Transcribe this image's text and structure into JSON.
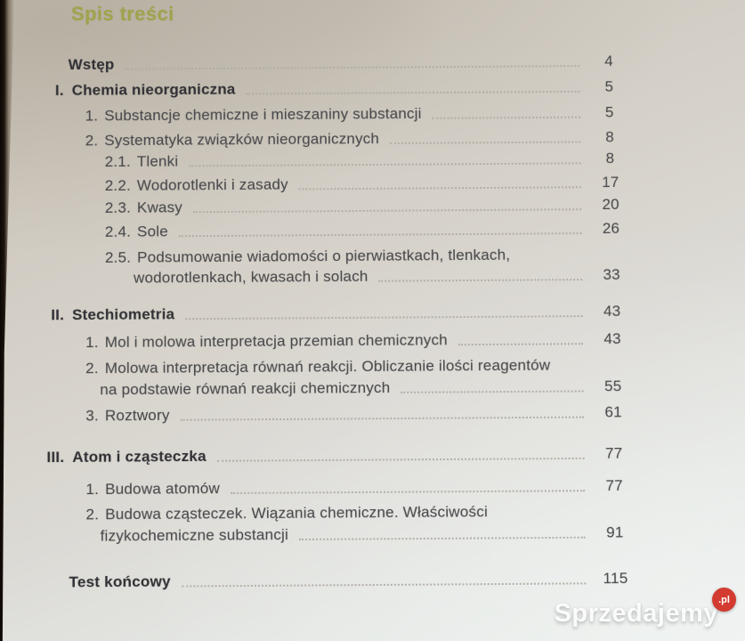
{
  "page_title": "Spis treści",
  "toc": {
    "entries": [
      {
        "num": "",
        "label": "Wstęp",
        "page": "4",
        "level": "l0",
        "bold": true
      },
      {
        "num": "I.",
        "label": "Chemia nieorganiczna",
        "page": "5",
        "level": "sec",
        "bold": true
      },
      {
        "num": "1.",
        "label": "Substancje chemiczne i mieszaniny substancji",
        "page": "5",
        "level": "l1"
      },
      {
        "num": "2.",
        "label": "Systematyka związków nieorganicznych",
        "page": "8",
        "level": "l1"
      },
      {
        "num": "2.1.",
        "label": "Tlenki",
        "page": "8",
        "level": "l2"
      },
      {
        "num": "2.2.",
        "label": "Wodorotlenki i zasady",
        "page": "17",
        "level": "l2"
      },
      {
        "num": "2.3.",
        "label": "Kwasy",
        "page": "20",
        "level": "l2"
      },
      {
        "num": "2.4.",
        "label": "Sole",
        "page": "26",
        "level": "l2"
      },
      {
        "num": "2.5.",
        "label": "Podsumowanie wiadomości o pierwiastkach, tlenkach,",
        "label2": "wodorotlenkach, kwasach i solach",
        "page": "33",
        "level": "l2"
      },
      {
        "num": "II.",
        "label": "Stechiometria",
        "page": "43",
        "level": "sec",
        "bold": true
      },
      {
        "num": "1.",
        "label": "Mol i molowa interpretacja przemian chemicznych",
        "page": "43",
        "level": "l1"
      },
      {
        "num": "2.",
        "label": "Molowa interpretacja równań reakcji. Obliczanie ilości reagentów",
        "label2": "na podstawie równań reakcji chemicznych",
        "page": "55",
        "level": "l1"
      },
      {
        "num": "3.",
        "label": "Roztwory",
        "page": "61",
        "level": "l1"
      },
      {
        "num": "III.",
        "label": "Atom i cząsteczka",
        "page": "77",
        "level": "sec",
        "bold": true
      },
      {
        "num": "1.",
        "label": "Budowa atomów",
        "page": "77",
        "level": "l1"
      },
      {
        "num": "2.",
        "label": "Budowa cząsteczek. Wiązania chemiczne. Właściwości",
        "label2": "fizykochemiczne substancji",
        "page": "91",
        "level": "l1"
      },
      {
        "num": "",
        "label": "Test końcowy",
        "page": "115",
        "level": "l0",
        "bold": true
      }
    ]
  },
  "watermark": {
    "brand": "Sprzedajemy",
    "tld": ".pl",
    "badge_color": "#d33b31"
  },
  "colors": {
    "title_green": "#9ea44d",
    "body_text": "#47474a",
    "bold_text": "#313135",
    "leader_dots": "#aeaaa2",
    "paper_top": "#c7c1b5",
    "paper_bottom": "#edf1ef",
    "left_edge": "#0b0705"
  }
}
